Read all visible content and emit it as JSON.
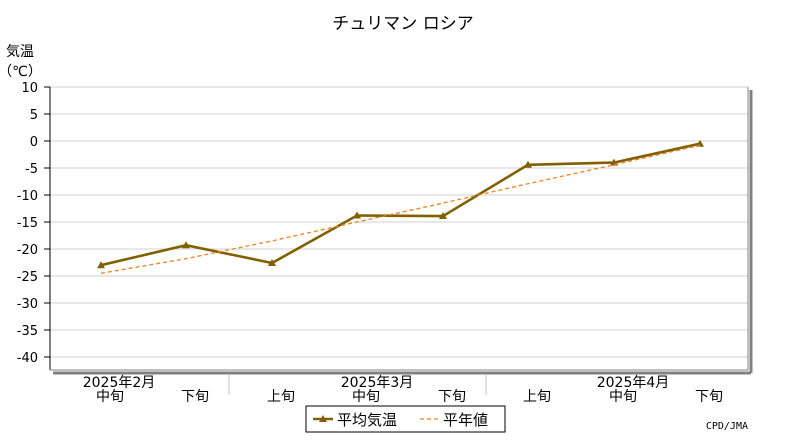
{
  "chart_data": {
    "type": "line",
    "title": "チュリマン ロシア",
    "ylabel_line1": "気温",
    "ylabel_line2": "（℃）",
    "ylim": [
      -42,
      10
    ],
    "yticks": [
      10,
      5,
      0,
      -5,
      -10,
      -15,
      -20,
      -25,
      -30,
      -35,
      -40
    ],
    "grid": true,
    "x_period_labels": [
      "中旬",
      "下旬",
      "上旬",
      "中旬",
      "下旬",
      "上旬",
      "中旬",
      "下旬"
    ],
    "month_labels": [
      "2025年2月",
      "2025年3月",
      "2025年4月"
    ],
    "series": [
      {
        "name": "平均気温",
        "color": "#806000",
        "marker": "triangle",
        "values": [
          -23.0,
          -19.3,
          -22.6,
          -13.8,
          -13.9,
          -4.4,
          -4.0,
          -0.5
        ]
      },
      {
        "name": "平年値",
        "color": "#f08020",
        "style": "dashed",
        "values": [
          -24.5,
          -21.8,
          -18.5,
          -15.0,
          -11.5,
          -7.9,
          -4.4,
          -0.8
        ]
      }
    ],
    "legend_position": "bottom-center"
  },
  "credit": "CPD/JMA"
}
